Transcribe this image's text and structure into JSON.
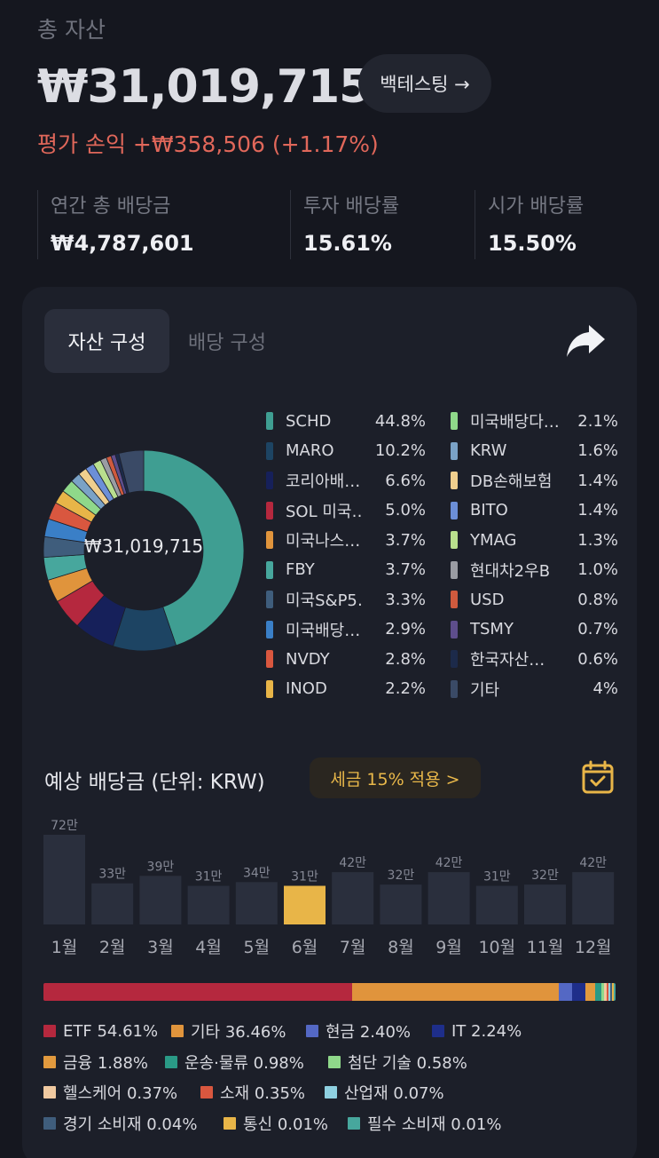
{
  "header": {
    "total_label": "총 자산",
    "total_value": "₩31,019,715",
    "backtest_label": "백테스팅 →",
    "pnl": "평가 손익 +₩358,506 (+1.17%)"
  },
  "stats": [
    {
      "label": "연간 총 배당금",
      "value": "₩4,787,601"
    },
    {
      "label": "투자 배당률",
      "value": "15.61%"
    },
    {
      "label": "시가 배당률",
      "value": "15.50%"
    }
  ],
  "tabs": {
    "asset": "자산 구성",
    "dividend": "배당 구성"
  },
  "icons": {
    "share": "share-arrow-icon",
    "calendar": "calendar-check-icon"
  },
  "donut": {
    "center_label": "₩31,019,715",
    "items": [
      {
        "name": "SCHD",
        "pct": "44.8%",
        "value": 44.8,
        "color": "#3f9e92"
      },
      {
        "name": "MARO",
        "pct": "10.2%",
        "value": 10.2,
        "color": "#1d4463"
      },
      {
        "name": "코리아배…",
        "pct": "6.6%",
        "value": 6.6,
        "color": "#16205a"
      },
      {
        "name": "SOL 미국…",
        "pct": "5.0%",
        "value": 5.0,
        "color": "#b5283e"
      },
      {
        "name": "미국나스…",
        "pct": "3.7%",
        "value": 3.7,
        "color": "#e0943c"
      },
      {
        "name": "FBY",
        "pct": "3.7%",
        "value": 3.7,
        "color": "#47a79d"
      },
      {
        "name": "미국S&P5…",
        "pct": "3.3%",
        "value": 3.3,
        "color": "#3f5d7c"
      },
      {
        "name": "미국배당…",
        "pct": "2.9%",
        "value": 2.9,
        "color": "#3a7fc7"
      },
      {
        "name": "NVDY",
        "pct": "2.8%",
        "value": 2.8,
        "color": "#d9573f"
      },
      {
        "name": "INOD",
        "pct": "2.2%",
        "value": 2.2,
        "color": "#e8b548"
      },
      {
        "name": "미국배당다…",
        "pct": "2.1%",
        "value": 2.1,
        "color": "#8fd88a"
      },
      {
        "name": "KRW",
        "pct": "1.6%",
        "value": 1.6,
        "color": "#7aa2c6"
      },
      {
        "name": "DB손해보험",
        "pct": "1.4%",
        "value": 1.4,
        "color": "#f0cf8e"
      },
      {
        "name": "BITO",
        "pct": "1.4%",
        "value": 1.4,
        "color": "#6c8fd8"
      },
      {
        "name": "YMAG",
        "pct": "1.3%",
        "value": 1.3,
        "color": "#b9df8e"
      },
      {
        "name": "현대차2우B",
        "pct": "1.0%",
        "value": 1.0,
        "color": "#9a9ca3"
      },
      {
        "name": "USD",
        "pct": "0.8%",
        "value": 0.8,
        "color": "#cf5a3e"
      },
      {
        "name": "TSMY",
        "pct": "0.7%",
        "value": 0.7,
        "color": "#5e4e8c"
      },
      {
        "name": "한국자산…",
        "pct": "0.6%",
        "value": 0.6,
        "color": "#1c2a4a"
      },
      {
        "name": "기타",
        "pct": "4%",
        "value": 4.0,
        "color": "#3a4a66"
      }
    ]
  },
  "expected": {
    "title": "예상 배당금 (단위: KRW)",
    "tax_label": "세금 15% 적용 >"
  },
  "chart_data": {
    "type": "bar",
    "categories": [
      "1월",
      "2월",
      "3월",
      "4월",
      "5월",
      "6월",
      "7월",
      "8월",
      "9월",
      "10월",
      "11월",
      "12월"
    ],
    "values": [
      72,
      33,
      39,
      31,
      34,
      31,
      42,
      32,
      42,
      31,
      32,
      42
    ],
    "value_labels": [
      "72만",
      "33만",
      "39만",
      "31만",
      "34만",
      "31만",
      "42만",
      "32만",
      "42만",
      "31만",
      "32만",
      "42만"
    ],
    "highlight_index": 5,
    "bar_color": "#2a2f3d",
    "highlight_color": "#e8b548"
  },
  "sectors": [
    {
      "label": "ETF 54.61%",
      "value": 54.61,
      "color": "#b5283e"
    },
    {
      "label": "기타 36.46%",
      "value": 36.46,
      "color": "#e0943c"
    },
    {
      "label": "현금 2.40%",
      "value": 2.4,
      "color": "#5468c4"
    },
    {
      "label": "IT 2.24%",
      "value": 2.24,
      "color": "#1e2e8a"
    },
    {
      "label": "금융 1.88%",
      "value": 1.88,
      "color": "#e29a3e"
    },
    {
      "label": "운송·물류 0.98%",
      "value": 0.98,
      "color": "#2a9a86"
    },
    {
      "label": "첨단 기술 0.58%",
      "value": 0.58,
      "color": "#8fd88a"
    },
    {
      "label": "헬스케어 0.37%",
      "value": 0.37,
      "color": "#f0c9a0"
    },
    {
      "label": "소재 0.35%",
      "value": 0.35,
      "color": "#d9573f"
    },
    {
      "label": "산업재 0.07%",
      "value": 0.07,
      "color": "#8ed0e0"
    },
    {
      "label": "경기 소비재 0.04%",
      "value": 0.04,
      "color": "#3f5d7c"
    },
    {
      "label": "통신 0.01%",
      "value": 0.01,
      "color": "#e8b548"
    },
    {
      "label": "필수 소비재 0.01%",
      "value": 0.01,
      "color": "#47a79d"
    }
  ]
}
